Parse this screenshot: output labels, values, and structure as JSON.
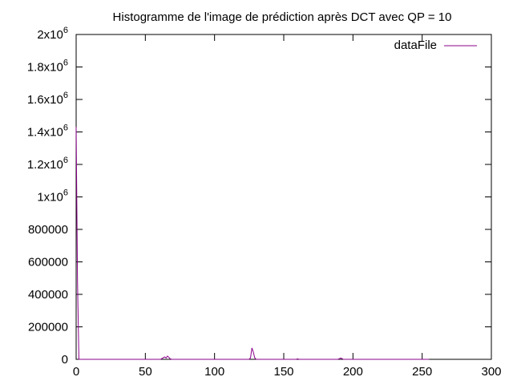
{
  "chart_data": {
    "type": "line",
    "title": "Histogramme de l'image de prédiction après DCT avec QP = 10",
    "xlabel": "",
    "ylabel": "",
    "xlim": [
      0,
      300
    ],
    "ylim": [
      0,
      2000000
    ],
    "grid": false,
    "legend_position": "top-right",
    "x_ticks": [
      {
        "value": 0,
        "label": "0"
      },
      {
        "value": 50,
        "label": "50"
      },
      {
        "value": 100,
        "label": "100"
      },
      {
        "value": 150,
        "label": "150"
      },
      {
        "value": 200,
        "label": "200"
      },
      {
        "value": 250,
        "label": "250"
      },
      {
        "value": 300,
        "label": "300"
      }
    ],
    "y_ticks": [
      {
        "value": 0,
        "label": "0",
        "exp": ""
      },
      {
        "value": 200000,
        "label": "200000",
        "exp": ""
      },
      {
        "value": 400000,
        "label": "400000",
        "exp": ""
      },
      {
        "value": 600000,
        "label": "600000",
        "exp": ""
      },
      {
        "value": 800000,
        "label": "800000",
        "exp": ""
      },
      {
        "value": 1000000,
        "label": "1x10",
        "exp": "6"
      },
      {
        "value": 1200000,
        "label": "1.2x10",
        "exp": "6"
      },
      {
        "value": 1400000,
        "label": "1.4x10",
        "exp": "6"
      },
      {
        "value": 1600000,
        "label": "1.6x10",
        "exp": "6"
      },
      {
        "value": 1800000,
        "label": "1.8x10",
        "exp": "6"
      },
      {
        "value": 2000000,
        "label": "2x10",
        "exp": "6"
      }
    ],
    "series": [
      {
        "name": "dataFile",
        "color": "#8b008b",
        "x": [
          0,
          1,
          2,
          3,
          4,
          60,
          61,
          62,
          63,
          64,
          65,
          66,
          67,
          68,
          69,
          70,
          124,
          125,
          126,
          127,
          128,
          129,
          130,
          131,
          132,
          159,
          160,
          161,
          188,
          189,
          190,
          191,
          192,
          193,
          194,
          195,
          255
        ],
        "y": [
          1430000,
          470000,
          0,
          0,
          0,
          0,
          0,
          5000,
          10000,
          15000,
          8000,
          20000,
          12000,
          3000,
          0,
          0,
          0,
          0,
          10000,
          70000,
          45000,
          10000,
          0,
          0,
          0,
          0,
          3000,
          0,
          0,
          0,
          3000,
          8000,
          5000,
          0,
          0,
          0,
          0
        ]
      }
    ]
  }
}
